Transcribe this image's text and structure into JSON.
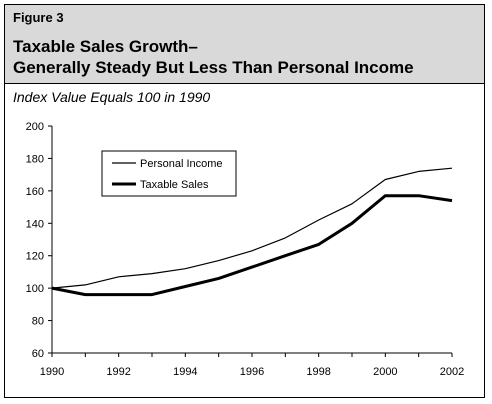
{
  "figure": {
    "label": "Figure 3",
    "title_line1": "Taxable Sales Growth–",
    "title_line2": "Generally Steady But Less Than Personal Income",
    "subtitle": "Index Value Equals 100 in 1990"
  },
  "colors": {
    "header_bg": "#d9d9d9",
    "line": "#000000",
    "border": "#000000"
  },
  "chart_data": {
    "type": "line",
    "x": [
      1990,
      1991,
      1992,
      1993,
      1994,
      1995,
      1996,
      1997,
      1998,
      1999,
      2000,
      2001,
      2002
    ],
    "x_ticks": [
      "1990",
      "1992",
      "1994",
      "1996",
      "1998",
      "2000",
      "2002"
    ],
    "y_ticks": [
      "60",
      "80",
      "100",
      "120",
      "140",
      "160",
      "180",
      "200"
    ],
    "xlim": [
      1990,
      2002
    ],
    "ylim": [
      60,
      200
    ],
    "grid": false,
    "legend_position": "upper-left",
    "series": [
      {
        "name": "Personal Income",
        "style": "thin",
        "values": [
          100,
          102,
          107,
          109,
          112,
          117,
          123,
          131,
          142,
          152,
          167,
          172,
          174
        ]
      },
      {
        "name": "Taxable Sales",
        "style": "thick",
        "values": [
          100,
          96,
          96,
          96,
          101,
          106,
          113,
          120,
          127,
          140,
          157,
          157,
          154
        ]
      }
    ]
  }
}
